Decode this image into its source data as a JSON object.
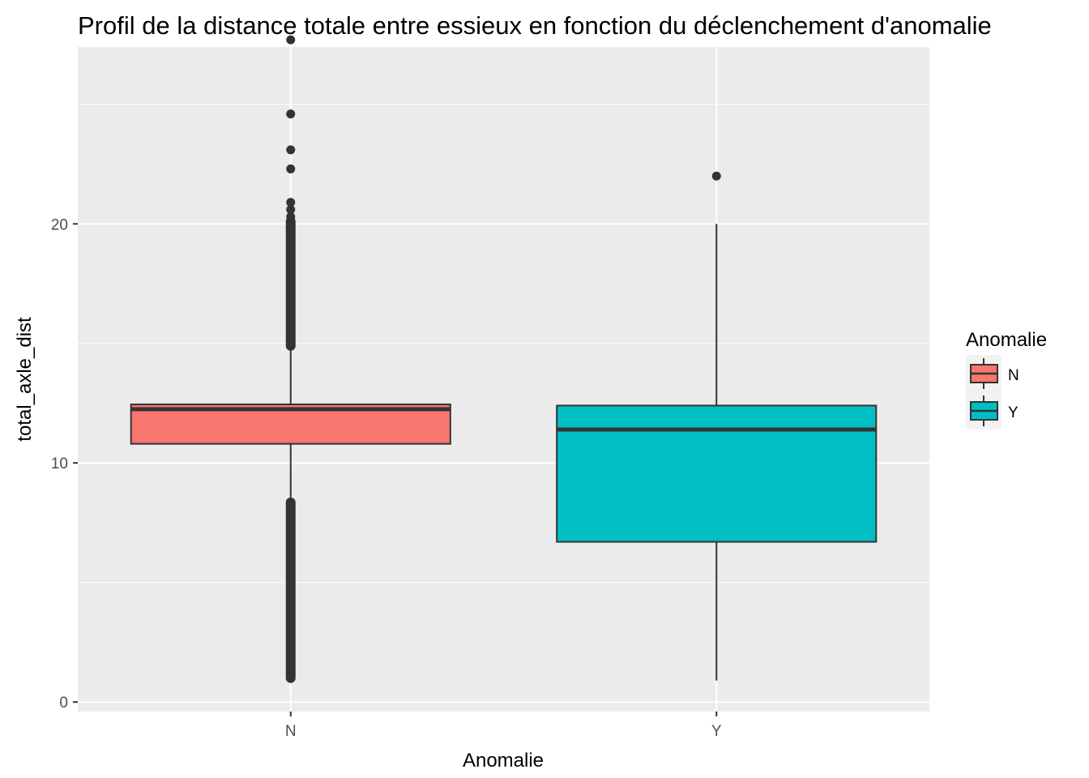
{
  "chart_data": {
    "type": "boxplot",
    "title": "Profil de la distance totale entre essieux en fonction du déclenchement d'anomalie",
    "xlabel": "Anomalie",
    "ylabel": "total_axle_dist",
    "categories": [
      "N",
      "Y"
    ],
    "y_ticks": [
      "0",
      "10",
      "20"
    ],
    "y_tick_values": [
      0,
      10,
      20
    ],
    "ylim": [
      -0.4,
      27.4
    ],
    "grid": true,
    "legend": {
      "title": "Anomalie",
      "position": "right",
      "entries": [
        "N",
        "Y"
      ]
    },
    "colors": {
      "N": "#f8766d",
      "Y": "#00bfc4",
      "panel": "#ebebeb",
      "grid": "#ffffff",
      "outline": "#333333"
    },
    "series": [
      {
        "name": "N",
        "q1": 10.8,
        "median": 12.25,
        "q3": 12.45,
        "whisker_low": 8.35,
        "whisker_high": 14.9,
        "outlier_bands": [
          [
            1.0,
            8.35
          ],
          [
            14.9,
            20.1
          ]
        ],
        "outliers": [
          20.3,
          20.6,
          20.9,
          22.3,
          23.1,
          24.6,
          27.7
        ]
      },
      {
        "name": "Y",
        "q1": 6.7,
        "median": 11.4,
        "q3": 12.4,
        "whisker_low": 0.9,
        "whisker_high": 20.0,
        "outlier_bands": [],
        "outliers": [
          22.0
        ]
      }
    ]
  }
}
